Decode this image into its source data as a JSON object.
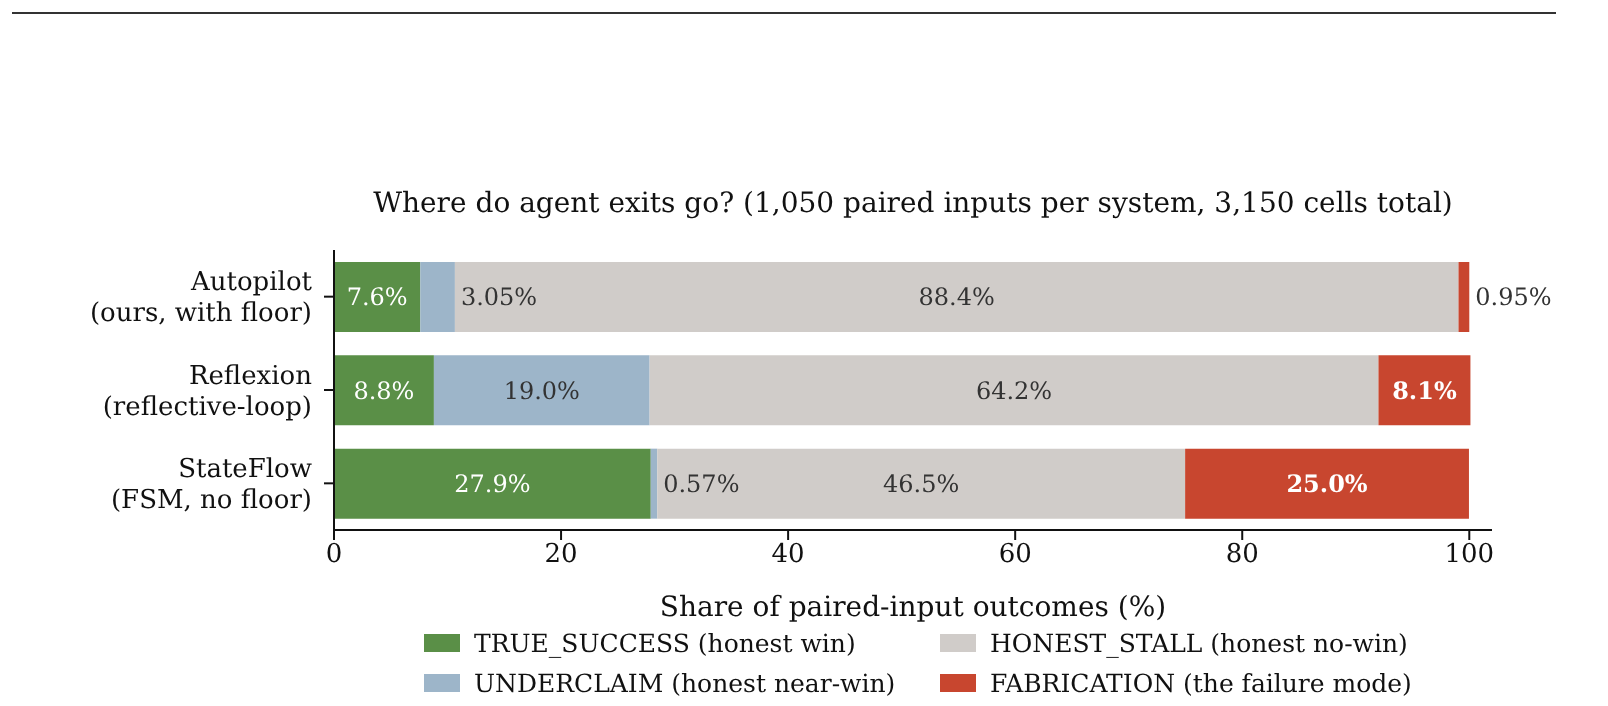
{
  "chart_data": {
    "type": "bar",
    "orientation": "horizontal",
    "stacked": true,
    "title": "Where do agent exits go? (1,050 paired inputs per system, 3,150 cells total)",
    "xlabel": "Share of paired-input outcomes (%)",
    "categories": [
      "Autopilot\n(ours, with floor)",
      "Reflexion\n(reflective-loop)",
      "StateFlow\n(FSM, no floor)"
    ],
    "series": [
      {
        "name": "TRUE_SUCCESS (honest win)",
        "color": "#5a8f47",
        "values": [
          7.6,
          8.8,
          27.9
        ],
        "value_labels": [
          "7.6%",
          "8.8%",
          "27.9%"
        ]
      },
      {
        "name": "UNDERCLAIM (honest near-win)",
        "color": "#9db5c9",
        "values": [
          3.05,
          19.0,
          0.57
        ],
        "value_labels": [
          "3.05%",
          "19.0%",
          "0.57%"
        ]
      },
      {
        "name": "HONEST_STALL (honest no-win)",
        "color": "#d0ccc9",
        "values": [
          88.4,
          64.2,
          46.5
        ],
        "value_labels": [
          "88.4%",
          "64.2%",
          "46.5%"
        ]
      },
      {
        "name": "FABRICATION (the failure mode)",
        "color": "#c8462f",
        "values": [
          0.95,
          8.1,
          25.0
        ],
        "value_labels": [
          "0.95%",
          "8.1%",
          "25.0%"
        ]
      }
    ],
    "xlim": [
      0,
      102
    ],
    "xticks": [
      0,
      20,
      40,
      60,
      80,
      100
    ],
    "grid": false,
    "legend": "bottom"
  }
}
